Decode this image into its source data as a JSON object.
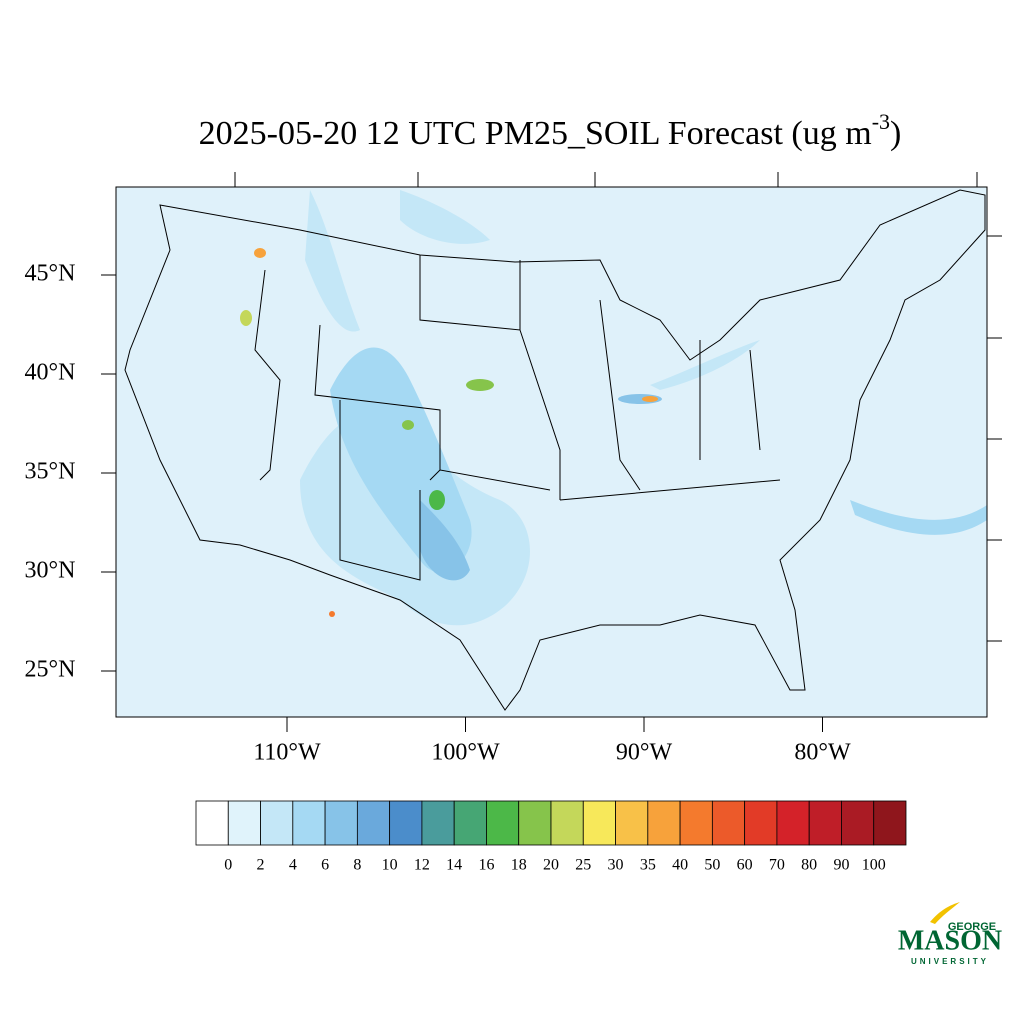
{
  "title": {
    "main": "2025-05-20 12 UTC PM25_SOIL Forecast (ug m",
    "superscript": "-3",
    "end": ")"
  },
  "map": {
    "background": "#dff1fa",
    "lat_ticks": [
      {
        "value": 45,
        "label": "45°N"
      },
      {
        "value": 40,
        "label": "40°N"
      },
      {
        "value": 35,
        "label": "35°N"
      },
      {
        "value": 30,
        "label": "30°N"
      },
      {
        "value": 25,
        "label": "25°N"
      }
    ],
    "lon_ticks": [
      {
        "value": -110,
        "label": "110°W"
      },
      {
        "value": -100,
        "label": "100°W"
      },
      {
        "value": -90,
        "label": "90°W"
      },
      {
        "value": -80,
        "label": "80°W"
      }
    ]
  },
  "colorbar": {
    "levels": [
      0,
      2,
      4,
      6,
      8,
      10,
      12,
      14,
      16,
      18,
      20,
      25,
      30,
      35,
      40,
      50,
      60,
      70,
      80,
      90,
      100
    ],
    "colors": [
      "#ffffff",
      "#e0f3fb",
      "#c4e7f7",
      "#a5d9f3",
      "#87c3e8",
      "#6aa9dc",
      "#4b8dcb",
      "#4a9c9c",
      "#46a674",
      "#4cb848",
      "#86c44b",
      "#c4d75a",
      "#f7e85a",
      "#f8c148",
      "#f7a23b",
      "#f47a2d",
      "#ec5a2a",
      "#e23b27",
      "#d42229",
      "#bf1e28",
      "#aa1b24",
      "#8f161c"
    ]
  },
  "logo": {
    "top": "GEORGE",
    "main": "MASON",
    "bottom": "UNIVERSITY"
  }
}
